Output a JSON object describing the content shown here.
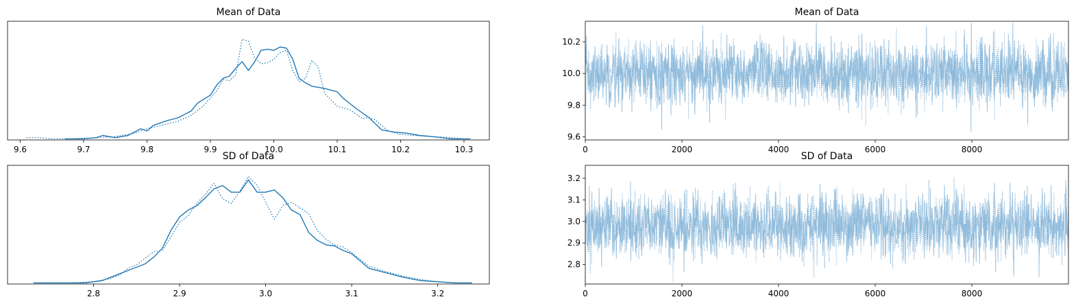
{
  "chart_data": [
    {
      "id": "kde-mean",
      "type": "line",
      "title": "Mean of Data",
      "xlim": [
        9.58,
        10.34
      ],
      "ylim": [
        0,
        1.06
      ],
      "xticks": [
        9.6,
        9.7,
        9.8,
        9.9,
        10.0,
        10.1,
        10.2,
        10.3
      ],
      "xtick_labels": [
        "9.6",
        "9.7",
        "9.8",
        "9.9",
        "10.0",
        "10.1",
        "10.2",
        "10.3"
      ],
      "series": [
        {
          "style": "solid",
          "x": [
            9.67,
            9.7,
            9.72,
            9.73,
            9.75,
            9.77,
            9.79,
            9.8,
            9.81,
            9.83,
            9.85,
            9.87,
            9.88,
            9.9,
            9.91,
            9.92,
            9.93,
            9.94,
            9.95,
            9.96,
            9.97,
            9.98,
            9.99,
            10.0,
            10.01,
            10.02,
            10.03,
            10.04,
            10.05,
            10.06,
            10.08,
            10.1,
            10.11,
            10.13,
            10.15,
            10.17,
            10.19,
            10.21,
            10.23,
            10.25,
            10.28,
            10.3,
            10.31
          ],
          "y": [
            0.01,
            0.01,
            0.02,
            0.04,
            0.02,
            0.04,
            0.1,
            0.08,
            0.13,
            0.17,
            0.2,
            0.26,
            0.33,
            0.4,
            0.49,
            0.55,
            0.57,
            0.64,
            0.7,
            0.62,
            0.7,
            0.8,
            0.81,
            0.8,
            0.83,
            0.82,
            0.72,
            0.55,
            0.51,
            0.48,
            0.46,
            0.43,
            0.37,
            0.28,
            0.2,
            0.09,
            0.07,
            0.06,
            0.04,
            0.03,
            0.01,
            0.01,
            0.01
          ]
        },
        {
          "style": "dotted",
          "x": [
            9.61,
            9.63,
            9.65,
            9.68,
            9.72,
            9.75,
            9.78,
            9.8,
            9.83,
            9.85,
            9.87,
            9.89,
            9.91,
            9.92,
            9.93,
            9.94,
            9.95,
            9.96,
            9.97,
            9.98,
            9.99,
            10.0,
            10.01,
            10.02,
            10.03,
            10.04,
            10.05,
            10.06,
            10.07,
            10.08,
            10.1,
            10.12,
            10.14,
            10.15,
            10.16,
            10.18,
            10.2,
            10.22,
            10.25,
            10.28,
            10.3
          ],
          "y": [
            0.02,
            0.02,
            0.01,
            0.01,
            0.02,
            0.03,
            0.06,
            0.1,
            0.14,
            0.17,
            0.22,
            0.31,
            0.44,
            0.54,
            0.53,
            0.58,
            0.9,
            0.88,
            0.73,
            0.68,
            0.69,
            0.72,
            0.78,
            0.8,
            0.62,
            0.52,
            0.55,
            0.71,
            0.65,
            0.42,
            0.3,
            0.27,
            0.19,
            0.2,
            0.18,
            0.08,
            0.05,
            0.04,
            0.03,
            0.02,
            0.01
          ]
        }
      ]
    },
    {
      "id": "trace-mean",
      "type": "line",
      "title": "Mean of Data",
      "xlim": [
        0,
        10000
      ],
      "ylim": [
        9.58,
        10.33
      ],
      "xticks": [
        0,
        2000,
        4000,
        6000,
        8000
      ],
      "xtick_labels": [
        "0",
        "2000",
        "4000",
        "6000",
        "8000"
      ],
      "yticks": [
        9.6,
        9.8,
        10.0,
        10.2
      ],
      "ytick_labels": [
        "9.6",
        "9.8",
        "10.0",
        "10.2"
      ],
      "n_draws": 10000,
      "center": 10.0,
      "spread": 0.1,
      "color": "#7eb0d5"
    },
    {
      "id": "kde-sd",
      "type": "line",
      "title": "SD of Data",
      "xlim": [
        2.7,
        3.26
      ],
      "ylim": [
        0,
        1.06
      ],
      "xticks": [
        2.8,
        2.9,
        3.0,
        3.1,
        3.2
      ],
      "xtick_labels": [
        "2.8",
        "2.9",
        "3.0",
        "3.1",
        "3.2"
      ],
      "series": [
        {
          "style": "solid",
          "x": [
            2.73,
            2.76,
            2.79,
            2.81,
            2.82,
            2.83,
            2.84,
            2.85,
            2.86,
            2.87,
            2.88,
            2.89,
            2.9,
            2.91,
            2.92,
            2.93,
            2.94,
            2.95,
            2.96,
            2.97,
            2.98,
            2.99,
            3.0,
            3.01,
            3.02,
            3.03,
            3.04,
            3.05,
            3.06,
            3.07,
            3.08,
            3.09,
            3.1,
            3.12,
            3.14,
            3.16,
            3.18,
            3.2,
            3.22,
            3.24
          ],
          "y": [
            0.01,
            0.01,
            0.01,
            0.03,
            0.06,
            0.09,
            0.12,
            0.15,
            0.18,
            0.24,
            0.32,
            0.48,
            0.6,
            0.66,
            0.7,
            0.77,
            0.85,
            0.88,
            0.82,
            0.82,
            0.93,
            0.82,
            0.82,
            0.84,
            0.77,
            0.66,
            0.62,
            0.46,
            0.39,
            0.35,
            0.34,
            0.3,
            0.27,
            0.14,
            0.1,
            0.06,
            0.03,
            0.02,
            0.01,
            0.01
          ]
        },
        {
          "style": "dotted",
          "x": [
            2.74,
            2.77,
            2.8,
            2.82,
            2.83,
            2.84,
            2.85,
            2.86,
            2.87,
            2.88,
            2.89,
            2.9,
            2.91,
            2.92,
            2.93,
            2.94,
            2.95,
            2.96,
            2.97,
            2.98,
            2.99,
            3.0,
            3.01,
            3.02,
            3.03,
            3.04,
            3.05,
            3.06,
            3.07,
            3.08,
            3.09,
            3.1,
            3.12,
            3.14,
            3.16,
            3.18,
            3.2,
            3.22
          ],
          "y": [
            0.01,
            0.01,
            0.02,
            0.05,
            0.08,
            0.14,
            0.17,
            0.23,
            0.29,
            0.3,
            0.42,
            0.55,
            0.61,
            0.72,
            0.8,
            0.9,
            0.76,
            0.72,
            0.83,
            0.96,
            0.88,
            0.73,
            0.58,
            0.7,
            0.73,
            0.68,
            0.63,
            0.48,
            0.4,
            0.35,
            0.33,
            0.28,
            0.16,
            0.11,
            0.07,
            0.04,
            0.02,
            0.01
          ]
        }
      ]
    },
    {
      "id": "trace-sd",
      "type": "line",
      "title": "SD of Data",
      "xlim": [
        0,
        10000
      ],
      "ylim": [
        2.71,
        3.26
      ],
      "xticks": [
        0,
        2000,
        4000,
        6000,
        8000
      ],
      "xtick_labels": [
        "0",
        "2000",
        "4000",
        "6000",
        "8000"
      ],
      "yticks": [
        2.8,
        2.9,
        3.0,
        3.1,
        3.2
      ],
      "ytick_labels": [
        "2.8",
        "2.9",
        "3.0",
        "3.1",
        "3.2"
      ],
      "n_draws": 10000,
      "center": 2.98,
      "spread": 0.075,
      "color": "#7eb0d5"
    }
  ],
  "colors": {
    "line": "#1f77b4",
    "trace": "#7eb0d5"
  }
}
